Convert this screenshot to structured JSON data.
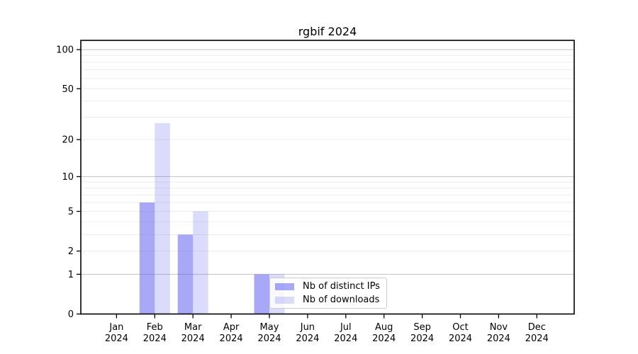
{
  "chart_data": {
    "type": "bar",
    "title": "rgbif 2024",
    "xlabel": "",
    "ylabel": "",
    "categories": [
      {
        "month": "Jan",
        "year": "2024"
      },
      {
        "month": "Feb",
        "year": "2024"
      },
      {
        "month": "Mar",
        "year": "2024"
      },
      {
        "month": "Apr",
        "year": "2024"
      },
      {
        "month": "May",
        "year": "2024"
      },
      {
        "month": "Jun",
        "year": "2024"
      },
      {
        "month": "Jul",
        "year": "2024"
      },
      {
        "month": "Aug",
        "year": "2024"
      },
      {
        "month": "Sep",
        "year": "2024"
      },
      {
        "month": "Oct",
        "year": "2024"
      },
      {
        "month": "Nov",
        "year": "2024"
      },
      {
        "month": "Dec",
        "year": "2024"
      }
    ],
    "series": [
      {
        "name": "Nb of distinct IPs",
        "key": "distinct-ips",
        "color": "rgba(85,85,240,0.51)",
        "values": [
          0,
          6,
          3,
          0,
          1,
          0,
          0,
          0,
          0,
          0,
          0,
          0
        ]
      },
      {
        "name": "Nb of downloads",
        "key": "downloads",
        "color": "rgba(85,85,240,0.21)",
        "values": [
          0,
          27,
          5,
          0,
          1,
          0,
          0,
          0,
          0,
          0,
          0,
          0
        ]
      }
    ],
    "y_axis": {
      "scale": "log1p",
      "max": 117.7,
      "ticks": [
        0,
        1,
        2,
        5,
        10,
        20,
        50,
        100
      ],
      "major_gridlines": [
        1,
        10,
        100
      ],
      "minor_gridlines": [
        2,
        3,
        4,
        5,
        6,
        7,
        8,
        9,
        20,
        30,
        40,
        50,
        60,
        70,
        80,
        90
      ]
    },
    "legend": {
      "position": "lower center",
      "entries": [
        "Nb of distinct IPs",
        "Nb of downloads"
      ]
    },
    "grid": true,
    "colors": {
      "minor_gridline": "#ededed",
      "major_gridline": "#c9c9c9",
      "spine": "#000000",
      "text": "#000000"
    }
  }
}
